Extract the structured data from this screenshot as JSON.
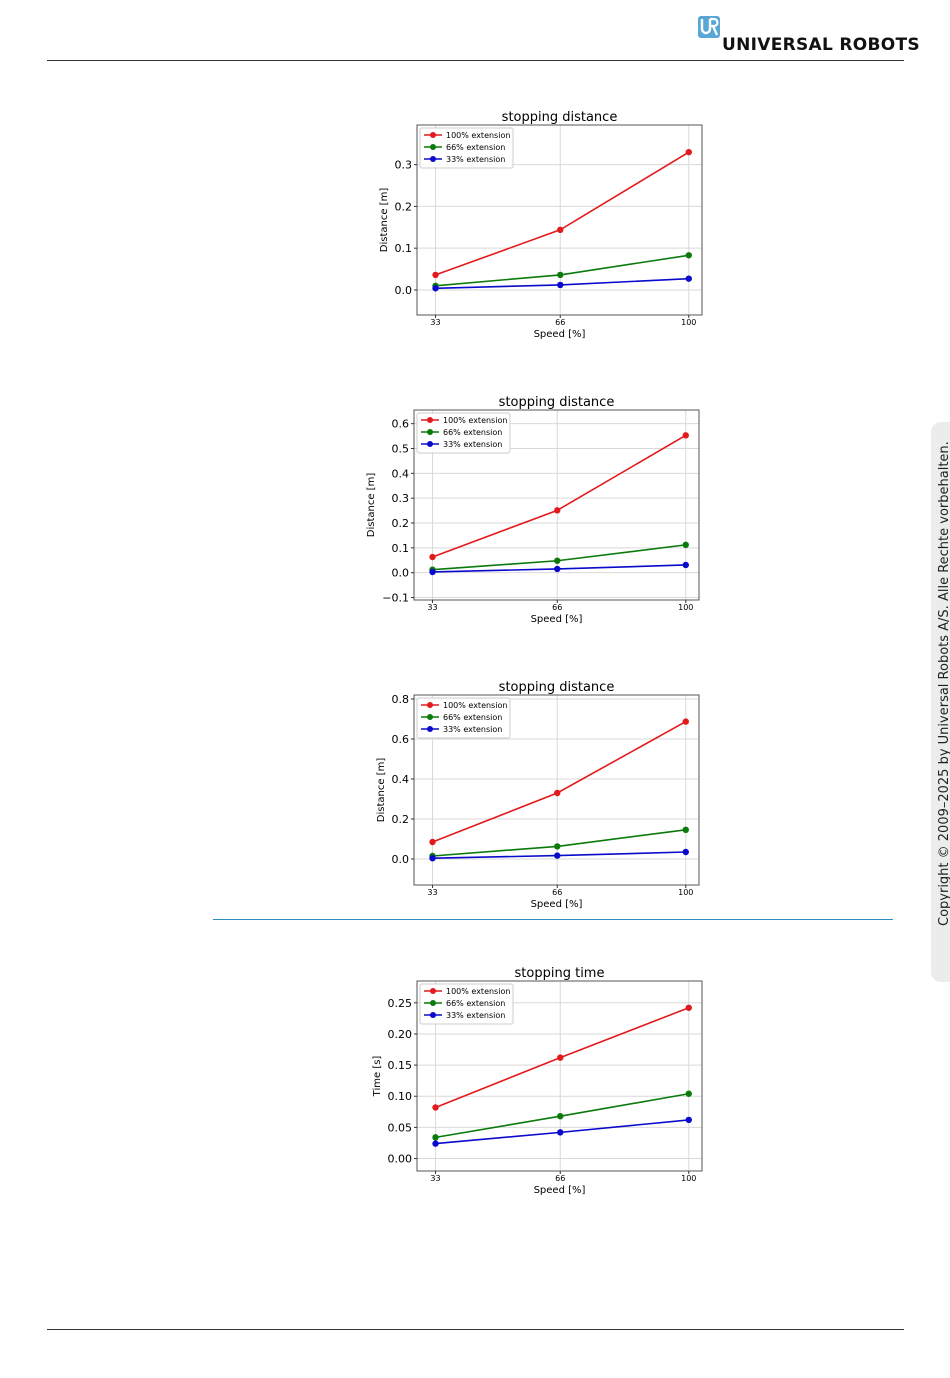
{
  "header": {
    "brand": "UNIVERSAL ROBOTS"
  },
  "sidebar": {
    "copyright": "Copyright © 2009–2025 by Universal Robots A/S. Alle Rechte vorbehalten."
  },
  "colors": {
    "red": "#e31a1c",
    "green": "#0a7a0a",
    "blue": "#0a0acc",
    "logo": "#5aa7d6",
    "section_rule": "#2e8bbf"
  },
  "chart_data": [
    {
      "type": "line",
      "title": "stopping distance",
      "xlabel": "Speed [%]",
      "ylabel": "Distance [m]",
      "x": [
        33,
        66,
        100
      ],
      "xticks": [
        "33",
        "66",
        "100"
      ],
      "ylim": [
        -0.06,
        0.395
      ],
      "yticks": [
        0.0,
        0.1,
        0.2,
        0.3
      ],
      "ytick_labels": [
        "0.0",
        "0.1",
        "0.2",
        "0.3"
      ],
      "grid": true,
      "legend": "top-left",
      "series": [
        {
          "name": "100% extension",
          "color": "red",
          "values": [
            0.036,
            0.144,
            0.33
          ]
        },
        {
          "name": "66% extension",
          "color": "green",
          "values": [
            0.01,
            0.036,
            0.083
          ]
        },
        {
          "name": "33% extension",
          "color": "blue",
          "values": [
            0.004,
            0.012,
            0.027
          ]
        }
      ]
    },
    {
      "type": "line",
      "title": "stopping distance",
      "xlabel": "Speed [%]",
      "ylabel": "Distance [m]",
      "x": [
        33,
        66,
        100
      ],
      "xticks": [
        "33",
        "66",
        "100"
      ],
      "ylim": [
        -0.11,
        0.655
      ],
      "yticks": [
        -0.1,
        0.0,
        0.1,
        0.2,
        0.3,
        0.4,
        0.5,
        0.6
      ],
      "ytick_labels": [
        "−0.1",
        "0.0",
        "0.1",
        "0.2",
        "0.3",
        "0.4",
        "0.5",
        "0.6"
      ],
      "grid": true,
      "legend": "top-left",
      "series": [
        {
          "name": "100% extension",
          "color": "red",
          "values": [
            0.063,
            0.251,
            0.553
          ]
        },
        {
          "name": "66% extension",
          "color": "green",
          "values": [
            0.012,
            0.048,
            0.112
          ]
        },
        {
          "name": "33% extension",
          "color": "blue",
          "values": [
            0.003,
            0.015,
            0.031
          ]
        }
      ]
    },
    {
      "type": "line",
      "title": "stopping distance",
      "xlabel": "Speed [%]",
      "ylabel": "Distance [m]",
      "x": [
        33,
        66,
        100
      ],
      "xticks": [
        "33",
        "66",
        "100"
      ],
      "ylim": [
        -0.13,
        0.82
      ],
      "yticks": [
        0.0,
        0.2,
        0.4,
        0.6,
        0.8
      ],
      "ytick_labels": [
        "0.0",
        "0.2",
        "0.4",
        "0.6",
        "0.8"
      ],
      "grid": true,
      "legend": "top-left",
      "series": [
        {
          "name": "100% extension",
          "color": "red",
          "values": [
            0.085,
            0.33,
            0.687
          ]
        },
        {
          "name": "66% extension",
          "color": "green",
          "values": [
            0.015,
            0.063,
            0.146
          ]
        },
        {
          "name": "33% extension",
          "color": "blue",
          "values": [
            0.004,
            0.017,
            0.035
          ]
        }
      ]
    },
    {
      "type": "line",
      "title": "stopping time",
      "xlabel": "Speed [%]",
      "ylabel": "Time [s]",
      "x": [
        33,
        66,
        100
      ],
      "xticks": [
        "33",
        "66",
        "100"
      ],
      "ylim": [
        -0.02,
        0.285
      ],
      "yticks": [
        0.0,
        0.05,
        0.1,
        0.15,
        0.2,
        0.25
      ],
      "ytick_labels": [
        "0.00",
        "0.05",
        "0.10",
        "0.15",
        "0.20",
        "0.25"
      ],
      "grid": true,
      "legend": "top-left",
      "series": [
        {
          "name": "100% extension",
          "color": "red",
          "values": [
            0.082,
            0.162,
            0.242
          ]
        },
        {
          "name": "66% extension",
          "color": "green",
          "values": [
            0.034,
            0.068,
            0.104
          ]
        },
        {
          "name": "33% extension",
          "color": "blue",
          "values": [
            0.024,
            0.042,
            0.062
          ]
        }
      ]
    }
  ]
}
